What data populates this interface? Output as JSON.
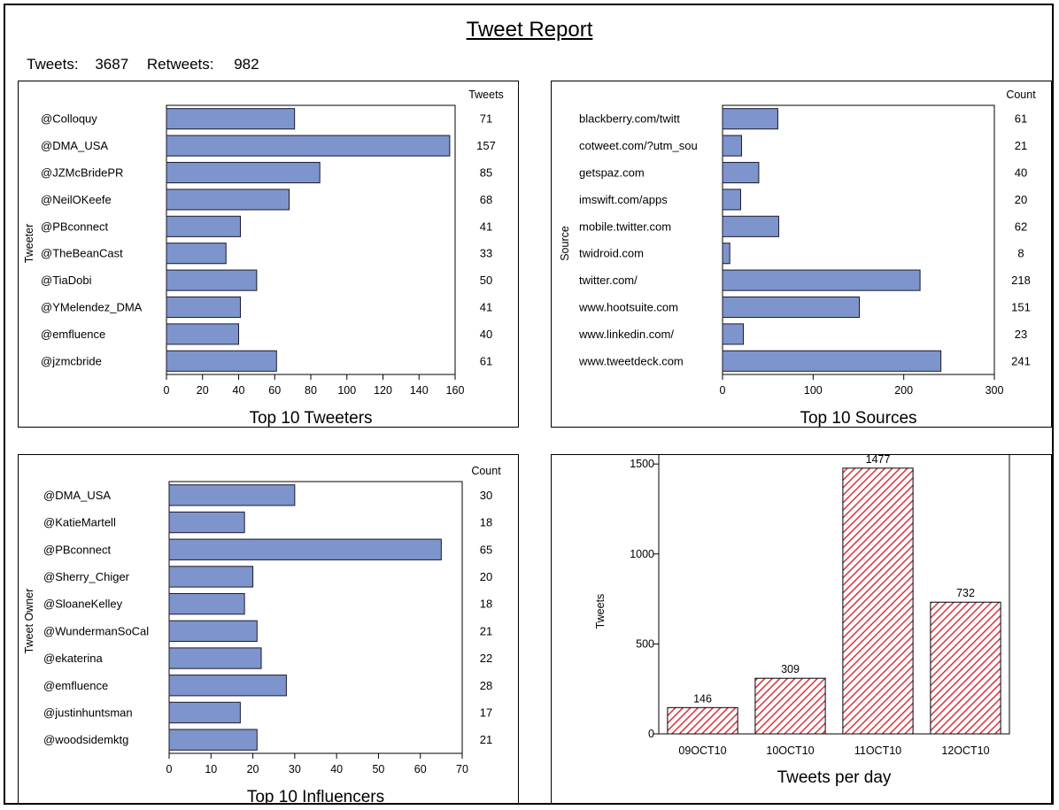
{
  "report": {
    "title": "Tweet Report",
    "tweets_label": "Tweets:",
    "tweets_value": "3687",
    "retweets_label": "Retweets:",
    "retweets_value": "982"
  },
  "chart_data": [
    {
      "type": "bar",
      "orientation": "horizontal",
      "title": "Top 10 Tweeters",
      "ylabel": "Tweeter",
      "value_header": "Tweets",
      "categories": [
        "@Colloquy",
        "@DMA_USA",
        "@JZMcBridePR",
        "@NeilOKeefe",
        "@PBconnect",
        "@TheBeanCast",
        "@TiaDobi",
        "@YMelendez_DMA",
        "@emfluence",
        "@jzmcbride"
      ],
      "values": [
        71,
        157,
        85,
        68,
        41,
        33,
        50,
        41,
        40,
        61
      ],
      "xlim": [
        0,
        160
      ],
      "xticks": [
        0,
        20,
        40,
        60,
        80,
        100,
        120,
        140,
        160
      ],
      "color": "#7e94cc"
    },
    {
      "type": "bar",
      "orientation": "horizontal",
      "title": "Top 10 Sources",
      "ylabel": "Source",
      "value_header": "Count",
      "categories": [
        "blackberry.com/twitt",
        "cotweet.com/?utm_sou",
        "getspaz.com",
        "imswift.com/apps",
        "mobile.twitter.com",
        "twidroid.com",
        "twitter.com/",
        "www.hootsuite.com",
        "www.linkedin.com/",
        "www.tweetdeck.com"
      ],
      "values": [
        61,
        21,
        40,
        20,
        62,
        8,
        218,
        151,
        23,
        241
      ],
      "xlim": [
        0,
        300
      ],
      "xticks": [
        0,
        100,
        200,
        300
      ],
      "color": "#7e94cc"
    },
    {
      "type": "bar",
      "orientation": "horizontal",
      "title": "Top 10 Influencers",
      "ylabel": "Tweet Owner",
      "value_header": "Count",
      "categories": [
        "@DMA_USA",
        "@KatieMartell",
        "@PBconnect",
        "@Sherry_Chiger",
        "@SloaneKelley",
        "@WundermanSoCal",
        "@ekaterina",
        "@emfluence",
        "@justinhuntsman",
        "@woodsidemktg"
      ],
      "values": [
        30,
        18,
        65,
        20,
        18,
        21,
        22,
        28,
        17,
        21
      ],
      "xlim": [
        0,
        70
      ],
      "xticks": [
        0,
        10,
        20,
        30,
        40,
        50,
        60,
        70
      ],
      "color": "#7e94cc"
    },
    {
      "type": "bar",
      "orientation": "vertical",
      "title": "Tweets  per day",
      "ylabel": "Tweets",
      "categories": [
        "09OCT10",
        "10OCT10",
        "11OCT10",
        "12OCT10"
      ],
      "values": [
        146,
        309,
        1477,
        732
      ],
      "ylim": [
        0,
        1550
      ],
      "yticks": [
        0,
        500,
        1000,
        1500
      ],
      "color": "#d9333f",
      "pattern": "hatched"
    }
  ]
}
